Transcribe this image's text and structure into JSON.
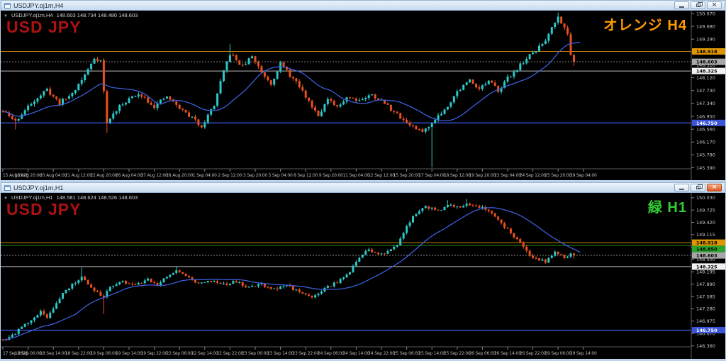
{
  "app": {
    "background_color": "#bdd3ea",
    "panels": [
      {
        "window_title": "USDJPY.oj1m,H4",
        "titlebar_buttons": {
          "minimize": "minimize",
          "restore": "restore",
          "close": "close",
          "close_glyph": "×"
        },
        "header": {
          "dropdown_icon": "▼",
          "symbol": "USDJPY.oj1m,H4",
          "ohlc_text": "148.603 148.734 148.480 148.603"
        },
        "watermark": "USD JPY",
        "watermark_color": "#ad1111",
        "corner_label": {
          "text": "オレンジ H4",
          "color": "#ff9900"
        }
      },
      {
        "window_title": "USDJPY.oj1m,H1",
        "titlebar_buttons": {
          "minimize": "minimize",
          "restore": "restore",
          "close": "close",
          "close_glyph": "×"
        },
        "header": {
          "dropdown_icon": "▼",
          "symbol": "USDJPY.oj1m,H1",
          "ohlc_text": "148.581 148.624 148.526 148.603"
        },
        "watermark": "USD JPY",
        "watermark_color": "#ad1111",
        "corner_label": {
          "text": "緑 H1",
          "color": "#33cc33"
        }
      }
    ]
  },
  "chart_data": [
    {
      "type": "candlestick",
      "symbol": "USDJPY.oj1m,H4",
      "timeframe": "H4",
      "current": {
        "open": 148.603,
        "high": 148.734,
        "low": 148.48,
        "close": 148.603
      },
      "ylim": [
        145.38,
        150.155
      ],
      "y_ticks": [
        150.07,
        149.68,
        149.29,
        148.9,
        148.51,
        148.12,
        147.73,
        147.34,
        146.95,
        146.56,
        146.17,
        145.78,
        145.39
      ],
      "x_labels": [
        "15 Aug 2025",
        "18 Aug 20:00",
        "20 Aug 04:00",
        "21 Aug 12:00",
        "22 Aug 20:00",
        "26 Aug 04:00",
        "27 Aug 12:00",
        "28 Aug 20:00",
        "1 Sep 04:00",
        "2 Sep 12:00",
        "3 Sep 20:00",
        "5 Sep 04:00",
        "8 Sep 12:00",
        "9 Sep 20:00",
        "11 Sep 04:00",
        "12 Sep 12:00",
        "15 Sep 20:00",
        "17 Sep 04:00",
        "18 Sep 12:00",
        "19 Sep 20:00",
        "23 Sep 04:00",
        "24 Sep 12:00",
        "25 Sep 20:00",
        "29 Sep 04:00"
      ],
      "price_lines": [
        {
          "price": 148.918,
          "color": "#c8860a",
          "width": 1,
          "dash": ""
        },
        {
          "price": 148.603,
          "color": "#8a8a8a",
          "width": 1,
          "dash": "2,2"
        },
        {
          "price": 148.325,
          "color": "#bdbdbd",
          "width": 1,
          "dash": ""
        },
        {
          "price": 146.75,
          "color": "#3c55d8",
          "width": 1.4,
          "dash": ""
        }
      ],
      "price_boxes": [
        {
          "price": 148.918,
          "bg": "#e09600",
          "fg": "#000000"
        },
        {
          "price": 148.603,
          "bg": "#a8a8a8",
          "fg": "#000000"
        },
        {
          "price": 148.325,
          "bg": "#f2f2f2",
          "fg": "#000000"
        },
        {
          "price": 146.75,
          "bg": "#3c55d8",
          "fg": "#ffffff"
        }
      ],
      "n_candles": 182,
      "seed": 11,
      "volatility": 0.12,
      "wick": 0.08,
      "ma_period": 18,
      "last_close": 148.603,
      "price_path": [
        [
          0,
          147.1
        ],
        [
          4,
          146.8
        ],
        [
          10,
          147.45
        ],
        [
          14,
          147.75
        ],
        [
          18,
          147.35
        ],
        [
          22,
          147.65
        ],
        [
          26,
          148.2
        ],
        [
          29,
          148.72
        ],
        [
          31,
          148.65
        ],
        [
          33,
          146.75
        ],
        [
          36,
          147.15
        ],
        [
          40,
          147.5
        ],
        [
          44,
          147.6
        ],
        [
          48,
          147.25
        ],
        [
          52,
          147.55
        ],
        [
          56,
          147.2
        ],
        [
          60,
          146.9
        ],
        [
          63,
          146.65
        ],
        [
          67,
          147.3
        ],
        [
          70,
          148.3
        ],
        [
          72,
          148.85
        ],
        [
          76,
          148.45
        ],
        [
          79,
          148.78
        ],
        [
          82,
          148.3
        ],
        [
          85,
          147.95
        ],
        [
          88,
          148.55
        ],
        [
          91,
          148.2
        ],
        [
          94,
          147.85
        ],
        [
          97,
          147.4
        ],
        [
          100,
          147.0
        ],
        [
          103,
          147.45
        ],
        [
          106,
          147.2
        ],
        [
          109,
          147.55
        ],
        [
          113,
          147.45
        ],
        [
          117,
          147.6
        ],
        [
          121,
          147.35
        ],
        [
          125,
          147.0
        ],
        [
          129,
          146.7
        ],
        [
          132,
          146.5
        ],
        [
          135,
          146.6
        ],
        [
          137,
          146.9
        ],
        [
          140,
          147.15
        ],
        [
          144,
          147.7
        ],
        [
          148,
          148.05
        ],
        [
          151,
          147.8
        ],
        [
          154,
          148.0
        ],
        [
          157,
          147.75
        ],
        [
          160,
          148.1
        ],
        [
          163,
          148.4
        ],
        [
          166,
          148.7
        ],
        [
          169,
          148.95
        ],
        [
          172,
          149.25
        ],
        [
          174,
          149.7
        ],
        [
          176,
          149.95
        ],
        [
          178,
          149.7
        ],
        [
          179,
          149.4
        ],
        [
          180,
          148.8
        ],
        [
          181,
          148.62
        ]
      ],
      "spikes": [
        {
          "i": 4,
          "low": 146.55
        },
        {
          "i": 33,
          "low": 146.45
        },
        {
          "i": 72,
          "high": 149.15
        },
        {
          "i": 136,
          "low": 145.4
        },
        {
          "i": 176,
          "high": 150.1
        },
        {
          "i": 181,
          "low": 148.48
        }
      ],
      "colors": {
        "up": "#2cc7c7",
        "down": "#e8501e",
        "ma": "#3b5fd9"
      }
    },
    {
      "type": "candlestick",
      "symbol": "USDJPY.oj1m,H1",
      "timeframe": "H1",
      "current": {
        "open": 148.581,
        "high": 148.624,
        "low": 148.526,
        "close": 148.603
      },
      "ylim": [
        146.355,
        150.15
      ],
      "y_ticks": [
        150.03,
        149.725,
        149.42,
        149.115,
        148.81,
        148.5,
        148.195,
        147.89,
        147.585,
        147.28,
        146.975,
        146.67,
        146.36
      ],
      "x_labels": [
        "17 Sep 2025",
        "18 Sep 06:00",
        "18 Sep 14:00",
        "18 Sep 22:00",
        "19 Sep 06:00",
        "19 Sep 14:00",
        "19 Sep 22:00",
        "22 Sep 06:00",
        "22 Sep 14:00",
        "22 Sep 22:00",
        "23 Sep 06:00",
        "23 Sep 14:00",
        "23 Sep 22:00",
        "24 Sep 06:00",
        "24 Sep 14:00",
        "24 Sep 22:00",
        "25 Sep 06:00",
        "25 Sep 14:00",
        "25 Sep 22:00",
        "26 Sep 06:00",
        "26 Sep 14:00",
        "26 Sep 22:00",
        "29 Sep 06:00",
        "29 Sep 14:00"
      ],
      "price_lines": [
        {
          "price": 148.918,
          "color": "#c8860a",
          "width": 1,
          "dash": ""
        },
        {
          "price": 148.85,
          "color": "#1f8f1f",
          "width": 1,
          "dash": ""
        },
        {
          "price": 148.603,
          "color": "#8a8a8a",
          "width": 1,
          "dash": "2,2"
        },
        {
          "price": 148.325,
          "color": "#bdbdbd",
          "width": 1,
          "dash": ""
        },
        {
          "price": 146.75,
          "color": "#3c55d8",
          "width": 1.4,
          "dash": ""
        }
      ],
      "price_boxes": [
        {
          "price": 148.918,
          "bg": "#e09600",
          "fg": "#000000"
        },
        {
          "price": 148.85,
          "bg": "#2aa42a",
          "fg": "#000000"
        },
        {
          "price": 148.603,
          "bg": "#a8a8a8",
          "fg": "#000000"
        },
        {
          "price": 148.325,
          "bg": "#f2f2f2",
          "fg": "#000000"
        },
        {
          "price": 146.75,
          "bg": "#3c55d8",
          "fg": "#ffffff"
        }
      ],
      "n_candles": 182,
      "seed": 5,
      "volatility": 0.07,
      "wick": 0.05,
      "ma_period": 24,
      "last_close": 148.603,
      "price_path": [
        [
          0,
          146.5
        ],
        [
          3,
          146.62
        ],
        [
          8,
          146.95
        ],
        [
          12,
          147.2
        ],
        [
          14,
          147.08
        ],
        [
          18,
          147.55
        ],
        [
          22,
          147.9
        ],
        [
          25,
          148.05
        ],
        [
          28,
          147.82
        ],
        [
          32,
          147.55
        ],
        [
          34,
          147.85
        ],
        [
          38,
          147.95
        ],
        [
          42,
          147.88
        ],
        [
          46,
          148.0
        ],
        [
          49,
          147.9
        ],
        [
          52,
          148.05
        ],
        [
          55,
          148.22
        ],
        [
          58,
          148.1
        ],
        [
          62,
          147.9
        ],
        [
          66,
          147.95
        ],
        [
          70,
          147.88
        ],
        [
          74,
          147.95
        ],
        [
          78,
          147.82
        ],
        [
          82,
          147.88
        ],
        [
          86,
          147.75
        ],
        [
          90,
          147.85
        ],
        [
          94,
          147.7
        ],
        [
          98,
          147.58
        ],
        [
          102,
          147.78
        ],
        [
          106,
          147.95
        ],
        [
          110,
          148.2
        ],
        [
          113,
          148.55
        ],
        [
          116,
          148.75
        ],
        [
          119,
          148.6
        ],
        [
          122,
          148.68
        ],
        [
          125,
          148.85
        ],
        [
          128,
          149.35
        ],
        [
          131,
          149.65
        ],
        [
          134,
          149.8
        ],
        [
          138,
          149.72
        ],
        [
          141,
          149.85
        ],
        [
          144,
          149.78
        ],
        [
          147,
          149.88
        ],
        [
          152,
          149.8
        ],
        [
          155,
          149.65
        ],
        [
          158,
          149.4
        ],
        [
          161,
          149.15
        ],
        [
          164,
          148.9
        ],
        [
          167,
          148.6
        ],
        [
          170,
          148.5
        ],
        [
          172,
          148.45
        ],
        [
          175,
          148.68
        ],
        [
          178,
          148.55
        ],
        [
          180,
          148.65
        ],
        [
          181,
          148.6
        ]
      ],
      "spikes": [
        {
          "i": 25,
          "high": 148.3
        },
        {
          "i": 32,
          "low": 147.15
        },
        {
          "i": 55,
          "high": 148.33
        },
        {
          "i": 141,
          "high": 149.97
        },
        {
          "i": 147,
          "high": 150.0
        },
        {
          "i": 172,
          "low": 148.4
        },
        {
          "i": 181,
          "low": 148.526
        }
      ],
      "colors": {
        "up": "#2cc7c7",
        "down": "#e8501e",
        "ma": "#3b5fd9"
      }
    }
  ]
}
